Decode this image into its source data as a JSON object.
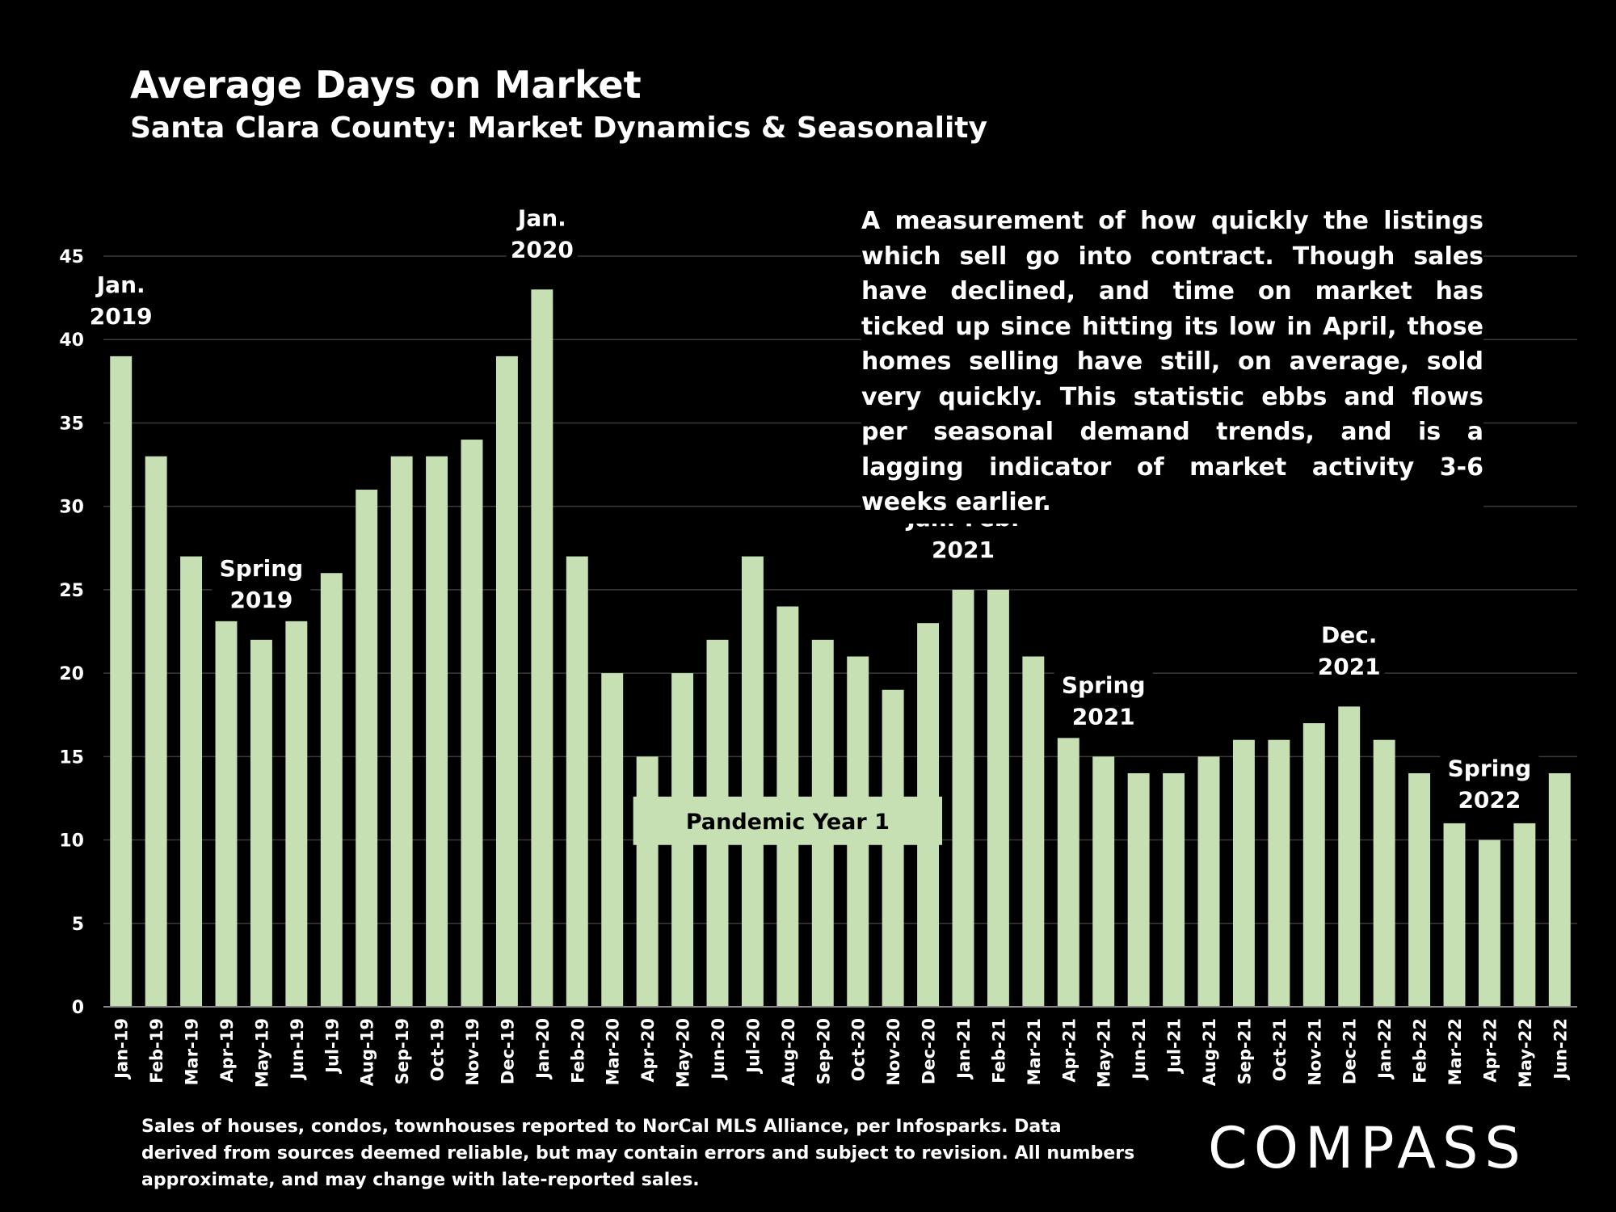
{
  "title": "Average Days on Market",
  "subtitle": "Santa Clara County: Market Dynamics & Seasonality",
  "description": "A measurement of how quickly the listings which sell go into contract. Though sales have declined, and time on market has ticked up since hitting its low in April, those homes selling have still, on average, sold very quickly. This statistic ebbs and flows per seasonal demand trends, and is a lagging indicator of market activity 3-6 weeks earlier.",
  "footnote": "Sales of houses, condos, townhouses reported to NorCal MLS Alliance, per Infosparks. Data derived from sources deemed reliable, but may contain errors and subject to revision. All numbers approximate, and may change with late-reported sales.",
  "logo": "COMPASS",
  "colors": {
    "bar": "#c6e0b4",
    "background": "#000000",
    "gridline": "#3a3a3a",
    "text": "#ffffff"
  },
  "chart_data": {
    "type": "bar",
    "categories": [
      "Jan-19",
      "Feb-19",
      "Mar-19",
      "Apr-19",
      "May-19",
      "Jun-19",
      "Jul-19",
      "Aug-19",
      "Sep-19",
      "Oct-19",
      "Nov-19",
      "Dec-19",
      "Jan-20",
      "Feb-20",
      "Mar-20",
      "Apr-20",
      "May-20",
      "Jun-20",
      "Jul-20",
      "Aug-20",
      "Sep-20",
      "Oct-20",
      "Nov-20",
      "Dec-20",
      "Jan-21",
      "Feb-21",
      "Mar-21",
      "Apr-21",
      "May-21",
      "Jun-21",
      "Jul-21",
      "Aug-21",
      "Sep-21",
      "Oct-21",
      "Nov-21",
      "Dec-21",
      "Jan-22",
      "Feb-22",
      "Mar-22",
      "Apr-22",
      "May-22",
      "Jun-22"
    ],
    "values": [
      39,
      33,
      27,
      24,
      22,
      24,
      26,
      31,
      33,
      33,
      34,
      39,
      43,
      27,
      20,
      15,
      20,
      22,
      27,
      24,
      22,
      21,
      19,
      23,
      25,
      25,
      21,
      17,
      15,
      14,
      14,
      15,
      16,
      16,
      17,
      18,
      16,
      14,
      11,
      10,
      11,
      14
    ],
    "ylim": [
      0,
      45
    ],
    "yticks": [
      0,
      5,
      10,
      15,
      20,
      25,
      30,
      35,
      40,
      45
    ],
    "grid": true,
    "annotations": [
      {
        "lines": [
          "Jan.",
          "2019"
        ],
        "category": "Jan-19"
      },
      {
        "lines": [
          "Spring",
          "2019"
        ],
        "category": "May-19"
      },
      {
        "lines": [
          "Jan.",
          "2020"
        ],
        "category": "Jan-20"
      },
      {
        "lines": [
          "Jan.-Feb.",
          "2021"
        ],
        "category": "Jan-21"
      },
      {
        "lines": [
          "Spring",
          "2021"
        ],
        "category": "May-21"
      },
      {
        "lines": [
          "Dec.",
          "2021"
        ],
        "category": "Dec-21"
      },
      {
        "lines": [
          "Spring",
          "2022"
        ],
        "category": "Apr-22"
      }
    ],
    "band": {
      "label": "Pandemic Year 1",
      "from": "Apr-20",
      "to": "Dec-20",
      "y_range": [
        9.7,
        12.6
      ]
    }
  }
}
